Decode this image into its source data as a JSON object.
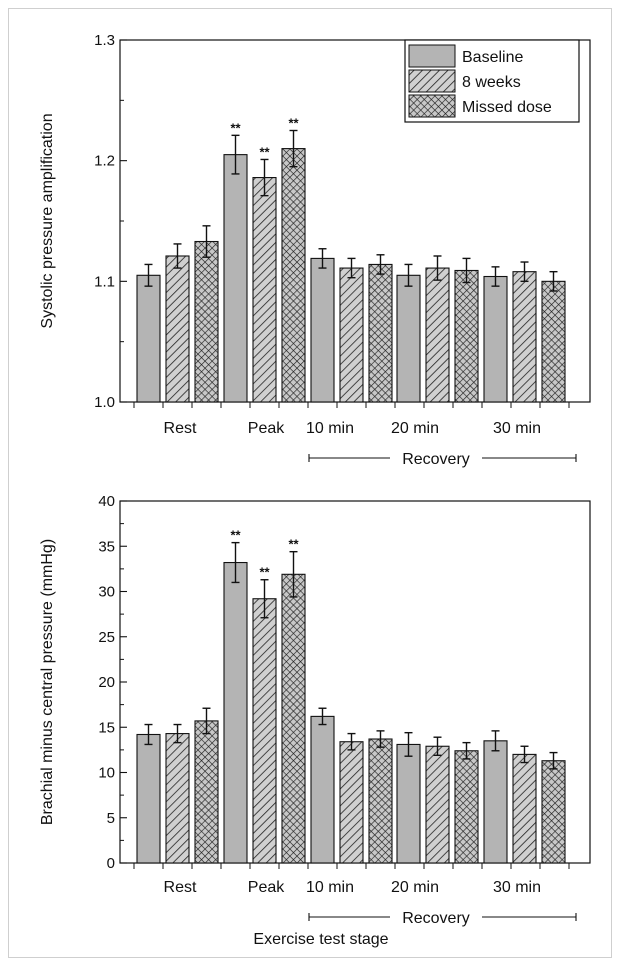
{
  "figure": {
    "x_axis_title": "Exercise test stage",
    "recovery_label": "Recovery",
    "significance_marker": "**"
  },
  "legend": {
    "items": [
      {
        "label": "Baseline",
        "pattern": "solid"
      },
      {
        "label": "8 weeks",
        "pattern": "hatch"
      },
      {
        "label": "Missed dose",
        "pattern": "crosshatch"
      }
    ]
  },
  "colors": {
    "bar_fill": "#b4b4b4",
    "stroke": "#111111"
  },
  "chart_data": [
    {
      "type": "bar",
      "ylabel": "Systolic pressure amplification",
      "ylim": [
        1.0,
        1.3
      ],
      "yticks": [
        "1.0",
        "1.1",
        "1.2",
        "1.3"
      ],
      "categories": [
        "Rest",
        "Peak",
        "10 min",
        "20 min",
        "30 min"
      ],
      "series": [
        {
          "name": "Baseline",
          "values": [
            1.105,
            1.205,
            1.119,
            1.105,
            1.104
          ],
          "errors": [
            0.009,
            0.016,
            0.008,
            0.009,
            0.008
          ]
        },
        {
          "name": "8 weeks",
          "values": [
            1.121,
            1.186,
            1.111,
            1.111,
            1.108
          ],
          "errors": [
            0.01,
            0.015,
            0.008,
            0.01,
            0.008
          ]
        },
        {
          "name": "Missed dose",
          "values": [
            1.133,
            1.21,
            1.114,
            1.109,
            1.1
          ],
          "errors": [
            0.013,
            0.015,
            0.008,
            0.01,
            0.008
          ]
        }
      ],
      "significant": [
        [
          false,
          true,
          false,
          false,
          false
        ],
        [
          false,
          true,
          false,
          false,
          false
        ],
        [
          false,
          true,
          false,
          false,
          false
        ]
      ]
    },
    {
      "type": "bar",
      "ylabel": "Brachial minus central pressure (mmHg)",
      "ylim": [
        0,
        40
      ],
      "yticks": [
        "0",
        "5",
        "10",
        "15",
        "20",
        "25",
        "30",
        "35",
        "40"
      ],
      "categories": [
        "Rest",
        "Peak",
        "10 min",
        "20 min",
        "30 min"
      ],
      "series": [
        {
          "name": "Baseline",
          "values": [
            14.2,
            33.2,
            16.2,
            13.1,
            13.5
          ],
          "errors": [
            1.1,
            2.2,
            0.9,
            1.3,
            1.1
          ]
        },
        {
          "name": "8 weeks",
          "values": [
            14.3,
            29.2,
            13.4,
            12.9,
            12.0
          ],
          "errors": [
            1.0,
            2.1,
            0.9,
            1.0,
            0.9
          ]
        },
        {
          "name": "Missed dose",
          "values": [
            15.7,
            31.9,
            13.7,
            12.4,
            11.3
          ],
          "errors": [
            1.4,
            2.5,
            0.9,
            0.9,
            0.9
          ]
        }
      ],
      "significant": [
        [
          false,
          true,
          false,
          false,
          false
        ],
        [
          false,
          true,
          false,
          false,
          false
        ],
        [
          false,
          true,
          false,
          false,
          false
        ]
      ]
    }
  ]
}
